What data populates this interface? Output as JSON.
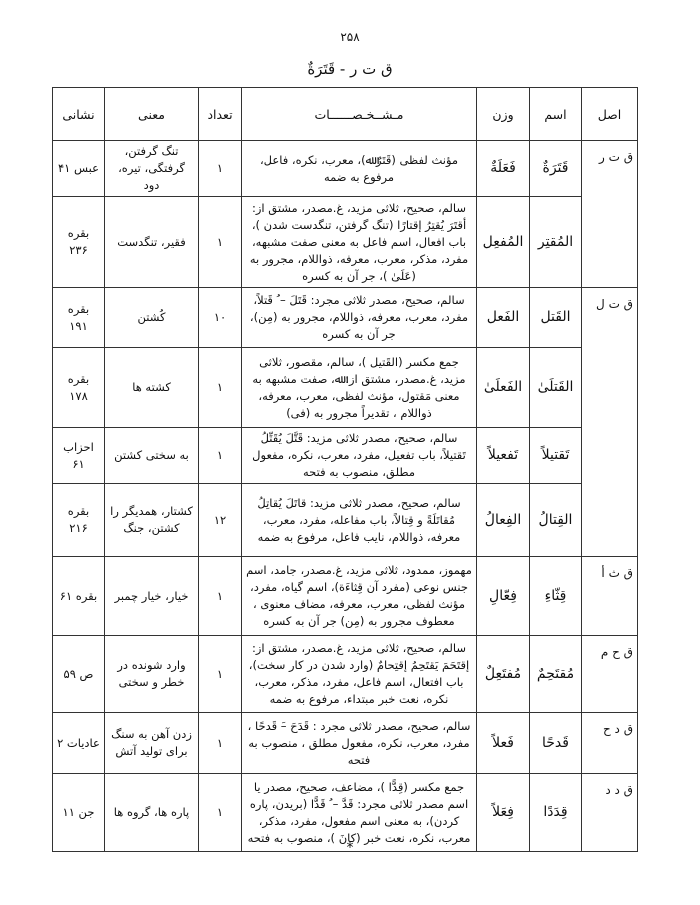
{
  "page_number": "۲۵۸",
  "title": "ق ت ر - قَتَرَةٌ",
  "headers": {
    "root": "اصل",
    "noun": "اسم",
    "pattern": "وزن",
    "features": "مـشــخـصــــــات",
    "count": "تعداد",
    "meaning": "معنی",
    "reference": "نشانی"
  },
  "groups": [
    {
      "root": "ق ت ر",
      "rows": [
        {
          "noun": "قَتَرَةٌ",
          "pattern": "فَعَلَةٌ",
          "features": "مؤنث لفظی (قَتَرٌ ﷲ)، معرب، نکره، فاعل، مرفوع به ضمه",
          "count": "۱",
          "meaning": "تنگ گرفتن، گرفتگی، تیره، دود",
          "reference": "عبس ۴۱"
        },
        {
          "noun": "المُقتِر",
          "pattern": "المُفعِل",
          "features": "سالم، صحیح، ثلاثی مزید، غ.مصدر، مشتق از: أقتَرَ یُقتِرُ إقتارًا (تنگ گرفتن، تنگدست شدن )، باب افعال، اسم فاعل به معنی صفت مشبهه، مفرد، مذکر، معرب، معرفه، ذواللام، مجرور به (عَلَیٰ )، جر آن به کسره",
          "count": "۱",
          "meaning": "فقیر، تنگدست",
          "reference": "بقره ۲۳۶"
        }
      ]
    },
    {
      "root": "ق ت ل",
      "rows": [
        {
          "noun": "القَتل",
          "pattern": "الفَعل",
          "features": "سالم، صحیح، مصدر ثلاثی مجرد: قَتَلَ – ُ قَتلاً، مفرد، معرب، معرفه، ذواللام، مجرور به (مِن)، جر آن به کسره",
          "count": "۱۰",
          "meaning": "کُشتن",
          "reference": "بقره ۱۹۱"
        },
        {
          "noun": "القَتلَیٰ",
          "pattern": "الفَعلَیٰ",
          "features": "جمع مکسر (القَتیل )، سالم، مقصور، ثلاثی مزید، غ.مصدر، مشتق از: ﷲ، صفت مشبهه به معنی مَقتول، مؤنث لفظی، معرب، معرفه، ذواللام ، تقدیراً مجرور به (فی)",
          "count": "۱",
          "meaning": "کشته ها",
          "reference": "بقره ۱۷۸"
        },
        {
          "noun": "تَقتیلاً",
          "pattern": "تَفعیلاً",
          "features": "سالم، صحیح، مصدر ثلاثی مزید: قَتَّلَ یُقَتِّلُ تَقتیلاً، باب تفعیل، مفرد، معرب، نکره، مفعول مطلق، منصوب به فتحه",
          "count": "۱",
          "meaning": "به سختی کشتن",
          "reference": "احزاب ۶۱"
        },
        {
          "noun": "القِتالُ",
          "pattern": "الفِعالُ",
          "features": "سالم، صحیح، مصدر ثلاثی مزید: قاتَلَ یُقاتِلُ مُقاتَلَةً و قِتالاً، باب مفاعله، مفرد، معرب، معرفه، ذواللام، نایب فاعل، مرفوع به ضمه",
          "count": "۱۲",
          "meaning": "کشتار، همدیگر را کشتن، جنگ",
          "reference": "بقره ۲۱۶"
        }
      ]
    },
    {
      "root": "ق ث أ",
      "rows": [
        {
          "noun": "قِثّاءِ",
          "pattern": "فِعّالِ",
          "features": "مهموز، ممدود، ثلاثی مزید، غ.مصدر، جامد، اسم جنس نوعی (مفرد آن قِثاءَة)، اسم گیاه، مفرد، مؤنث لفظی، معرب، معرفه، مضاف معنوی ، معطوف مجرور به (مِن) جر آن به کسره",
          "count": "۱",
          "meaning": "خیار، خیار چمبر",
          "reference": "بقره ۶۱"
        }
      ]
    },
    {
      "root": "ق ح م",
      "rows": [
        {
          "noun": "مُقتَحِمٌ",
          "pattern": "مُفتَعِلٌ",
          "features": "سالم، صحیح، ثلاثی مزید، غ.مصدر، مشتق از: إقتَحَمَ یَقتَحِمُ إقتِحامٌ (وارد شدن در کار سخت)، باب افتعال، اسم فاعل، مفرد، مذکر، معرب، نکره، نعت خبر مبتداء، مرفوع به ضمه",
          "count": "۱",
          "meaning": "وارد شونده در خطر و سختی",
          "reference": "ص ۵۹"
        }
      ]
    },
    {
      "root": "ق د ح",
      "rows": [
        {
          "noun": "قَدحًا",
          "pattern": "فَعلاً",
          "features": "سالم، صحیح، مصدر ثلاثی مجرد : قَدَحَ –َ قَدحًا ، مفرد، معرب، نکره، مفعول مطلق ، منصوب به فتحه",
          "count": "۱",
          "meaning": "زدن آهن به سنگ برای تولید آتش",
          "reference": "عادیات ۲"
        }
      ]
    },
    {
      "root": "ق د د",
      "rows": [
        {
          "noun": "قِدَدًا",
          "pattern": "فِعَلاً",
          "features": "جمع مکسر (قِدًّا )، مضاعف، صحیح، مصدر یا اسم مصدر ثلاثی مجرد: قَدَّ – ُ قَدًّا (بریدن، پاره کردن)، به معنی اسم مفعول، مفرد، مذکر، معرب، نکره، نعت خبر (کانَ )، منصوب به فتحه",
          "count": "۱",
          "meaning": "پاره ها، گروه ها",
          "reference": "جن ۱۱"
        }
      ]
    }
  ],
  "footer_mark": "*"
}
